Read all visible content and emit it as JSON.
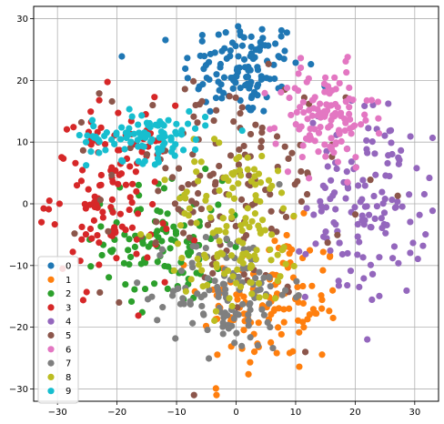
{
  "chart_data": {
    "type": "scatter",
    "title": "",
    "xlabel": "",
    "ylabel": "",
    "xlim": [
      -34,
      34
    ],
    "ylim": [
      -32,
      32
    ],
    "xticks": [
      -30,
      -20,
      -10,
      0,
      10,
      20,
      30
    ],
    "yticks": [
      -30,
      -20,
      -10,
      0,
      10,
      20,
      30
    ],
    "grid": true,
    "legend_position": "lower-left",
    "series": [
      {
        "name": "0",
        "color": "#1f77b4",
        "center": [
          1,
          22
        ],
        "spread": [
          5,
          4
        ],
        "count": 120
      },
      {
        "name": "1",
        "color": "#ff7f0e",
        "center": [
          6,
          -16
        ],
        "spread": [
          6,
          6
        ],
        "count": 120
      },
      {
        "name": "2",
        "color": "#2ca02c",
        "center": [
          -12,
          -6
        ],
        "spread": [
          5,
          5
        ],
        "count": 110
      },
      {
        "name": "3",
        "color": "#d62728",
        "center": [
          -21,
          2
        ],
        "spread": [
          5,
          7
        ],
        "count": 130
      },
      {
        "name": "4",
        "color": "#9467bd",
        "center": [
          22,
          0
        ],
        "spread": [
          5,
          8
        ],
        "count": 140
      },
      {
        "name": "5",
        "color": "#8c564b",
        "center": [
          -2,
          3
        ],
        "spread": [
          10,
          9
        ],
        "count": 140
      },
      {
        "name": "6",
        "color": "#e377c2",
        "center": [
          15,
          14
        ],
        "spread": [
          4,
          4
        ],
        "count": 120
      },
      {
        "name": "7",
        "color": "#7f7f7f",
        "center": [
          -1,
          -14
        ],
        "spread": [
          5,
          5
        ],
        "count": 130
      },
      {
        "name": "8",
        "color": "#bcbd22",
        "center": [
          0,
          -4
        ],
        "spread": [
          6,
          7
        ],
        "count": 140
      },
      {
        "name": "9",
        "color": "#17becf",
        "center": [
          -15,
          11
        ],
        "spread": [
          5,
          2
        ],
        "count": 100
      }
    ]
  }
}
